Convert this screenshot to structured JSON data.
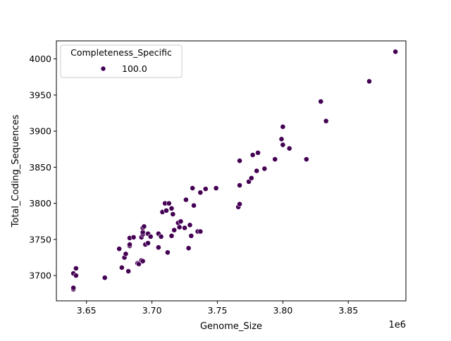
{
  "chart_data": {
    "type": "scatter",
    "title": "",
    "xlabel": "Genome_Size",
    "ylabel": "Total_Coding_Sequences",
    "x_offset_label": "1e6",
    "xlim": [
      3.627,
      3.894
    ],
    "ylim": [
      3665,
      4025
    ],
    "x_ticks": [
      3.65,
      3.7,
      3.75,
      3.8,
      3.85
    ],
    "x_tick_labels": [
      "3.65",
      "3.70",
      "3.75",
      "3.80",
      "3.85"
    ],
    "y_ticks": [
      3700,
      3750,
      3800,
      3850,
      3900,
      3950,
      4000
    ],
    "y_tick_labels": [
      "3700",
      "3750",
      "3800",
      "3850",
      "3900",
      "3950",
      "4000"
    ],
    "grid": false,
    "legend": {
      "title": "Completeness_Specific",
      "placement": "top-left",
      "entries": [
        {
          "label": "100.0",
          "color": "#440154"
        }
      ]
    },
    "series": [
      {
        "name": "100.0",
        "color": "#440154",
        "points": [
          [
            3.64,
            3681
          ],
          [
            3.64,
            3683
          ],
          [
            3.64,
            3703
          ],
          [
            3.642,
            3700
          ],
          [
            3.642,
            3710
          ],
          [
            3.664,
            3697
          ],
          [
            3.675,
            3737
          ],
          [
            3.677,
            3711
          ],
          [
            3.679,
            3725
          ],
          [
            3.68,
            3730
          ],
          [
            3.682,
            3706
          ],
          [
            3.683,
            3741
          ],
          [
            3.683,
            3743
          ],
          [
            3.683,
            3752
          ],
          [
            3.686,
            3753
          ],
          [
            3.689,
            3717
          ],
          [
            3.69,
            3716
          ],
          [
            3.692,
            3721
          ],
          [
            3.692,
            3753
          ],
          [
            3.693,
            3720
          ],
          [
            3.693,
            3757
          ],
          [
            3.693,
            3760
          ],
          [
            3.693,
            3766
          ],
          [
            3.694,
            3768
          ],
          [
            3.695,
            3743
          ],
          [
            3.697,
            3745
          ],
          [
            3.697,
            3758
          ],
          [
            3.699,
            3754
          ],
          [
            3.705,
            3758
          ],
          [
            3.705,
            3739
          ],
          [
            3.707,
            3754
          ],
          [
            3.708,
            3788
          ],
          [
            3.71,
            3800
          ],
          [
            3.711,
            3790
          ],
          [
            3.712,
            3732
          ],
          [
            3.713,
            3800
          ],
          [
            3.715,
            3755
          ],
          [
            3.715,
            3793
          ],
          [
            3.716,
            3785
          ],
          [
            3.717,
            3763
          ],
          [
            3.72,
            3773
          ],
          [
            3.721,
            3767
          ],
          [
            3.722,
            3775
          ],
          [
            3.725,
            3766
          ],
          [
            3.726,
            3805
          ],
          [
            3.728,
            3738
          ],
          [
            3.729,
            3770
          ],
          [
            3.73,
            3755
          ],
          [
            3.731,
            3821
          ],
          [
            3.732,
            3797
          ],
          [
            3.735,
            3761
          ],
          [
            3.737,
            3761
          ],
          [
            3.737,
            3815
          ],
          [
            3.741,
            3820
          ],
          [
            3.749,
            3821
          ],
          [
            3.766,
            3795
          ],
          [
            3.767,
            3799
          ],
          [
            3.767,
            3859
          ],
          [
            3.767,
            3825
          ],
          [
            3.774,
            3830
          ],
          [
            3.776,
            3835
          ],
          [
            3.777,
            3867
          ],
          [
            3.78,
            3845
          ],
          [
            3.781,
            3870
          ],
          [
            3.786,
            3848
          ],
          [
            3.794,
            3861
          ],
          [
            3.799,
            3889
          ],
          [
            3.8,
            3881
          ],
          [
            3.8,
            3906
          ],
          [
            3.805,
            3876
          ],
          [
            3.818,
            3861
          ],
          [
            3.829,
            3941
          ],
          [
            3.833,
            3914
          ],
          [
            3.866,
            3969
          ],
          [
            3.886,
            4010
          ]
        ]
      }
    ]
  }
}
